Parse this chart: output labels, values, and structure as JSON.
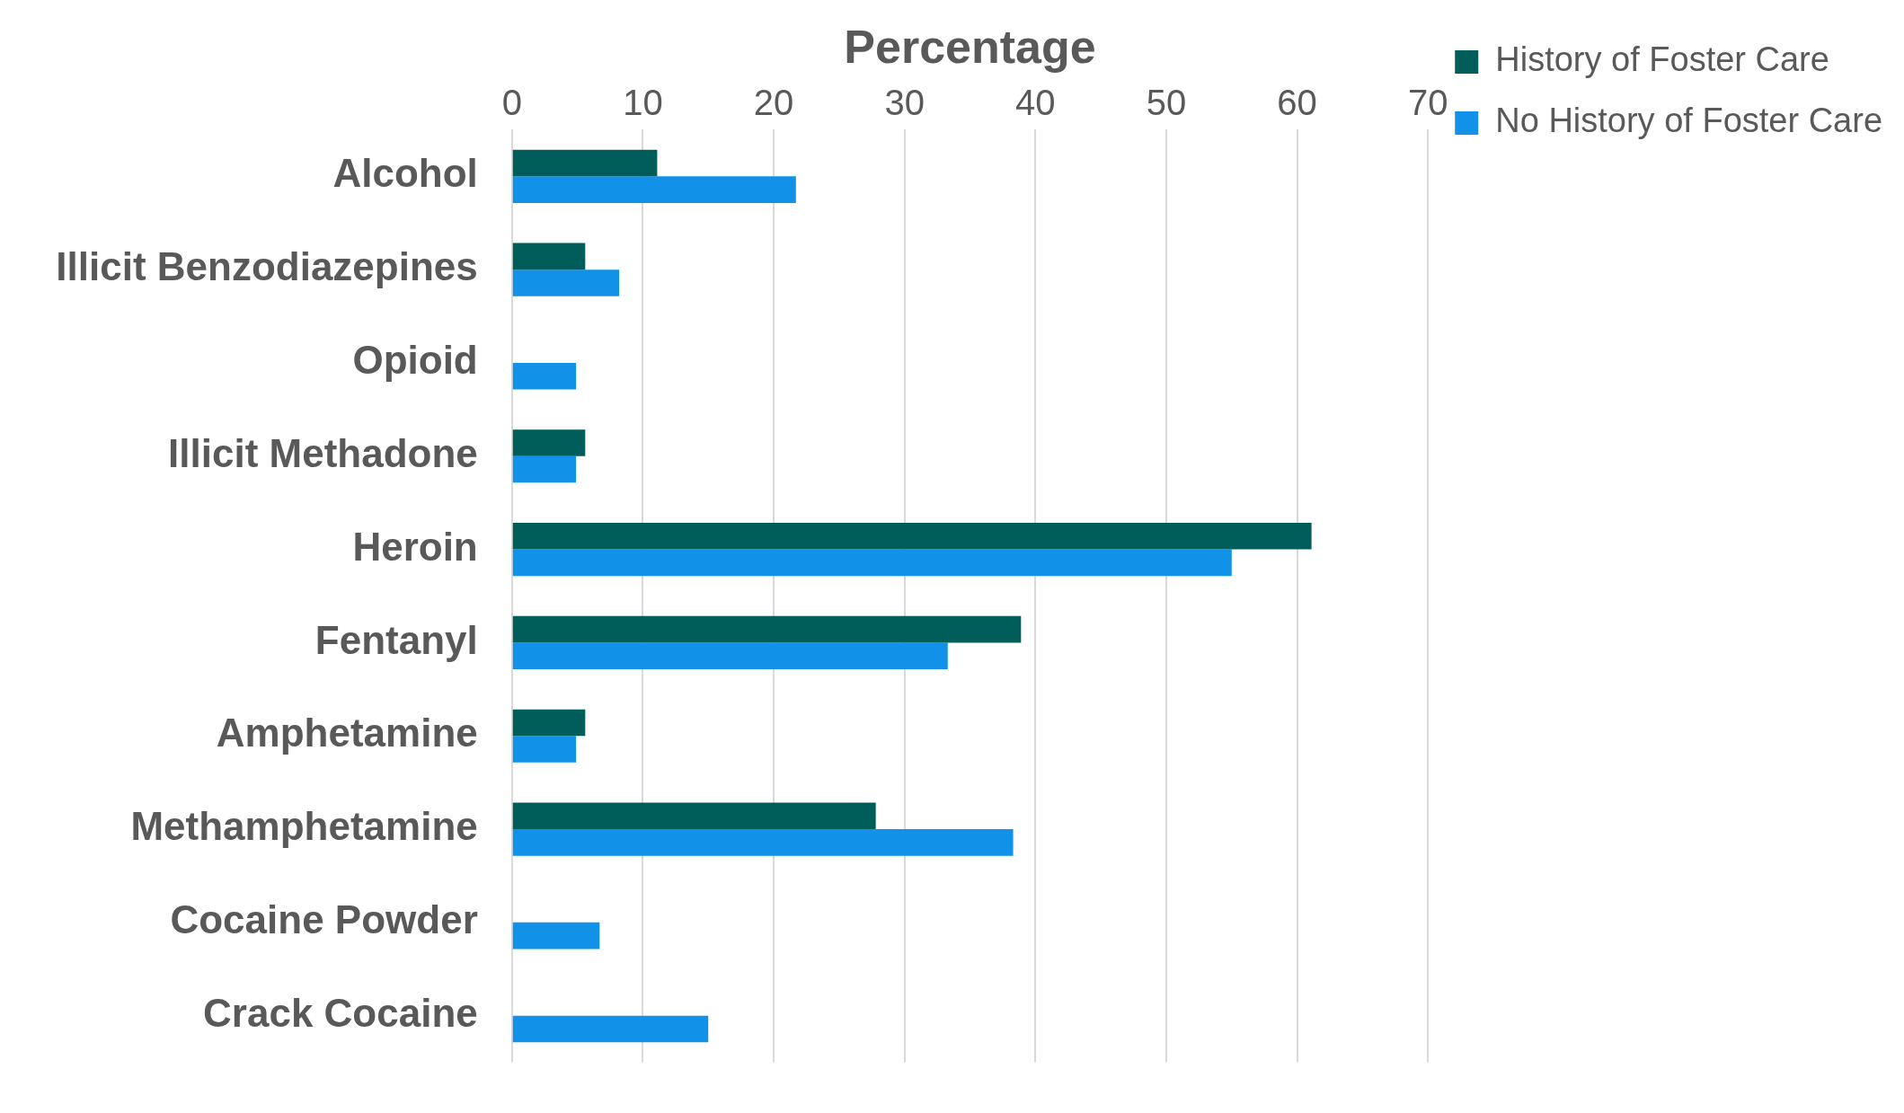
{
  "chart_data": {
    "type": "bar",
    "orientation": "horizontal",
    "xlabel": "Percentage",
    "categories": [
      "Alcohol",
      "Illicit Benzodiazepines",
      "Opioid",
      "Illicit Methadone",
      "Heroin",
      "Fentanyl",
      "Amphetamine",
      "Methamphetamine",
      "Cocaine Powder",
      "Crack Cocaine"
    ],
    "series": [
      {
        "name": "History of Foster Care",
        "color": "#005e5a",
        "values": [
          11.1,
          5.6,
          0,
          5.6,
          61.1,
          38.9,
          5.6,
          27.8,
          0,
          0
        ]
      },
      {
        "name": "No History of Foster Care",
        "color": "#1192e8",
        "values": [
          21.7,
          8.2,
          4.9,
          4.9,
          55,
          33.3,
          4.9,
          38.3,
          6.7,
          15
        ]
      }
    ],
    "xlim": [
      0,
      70
    ],
    "xticks": [
      0,
      10,
      20,
      30,
      40,
      50,
      60,
      70
    ],
    "grid": "x",
    "legend": "top right"
  }
}
